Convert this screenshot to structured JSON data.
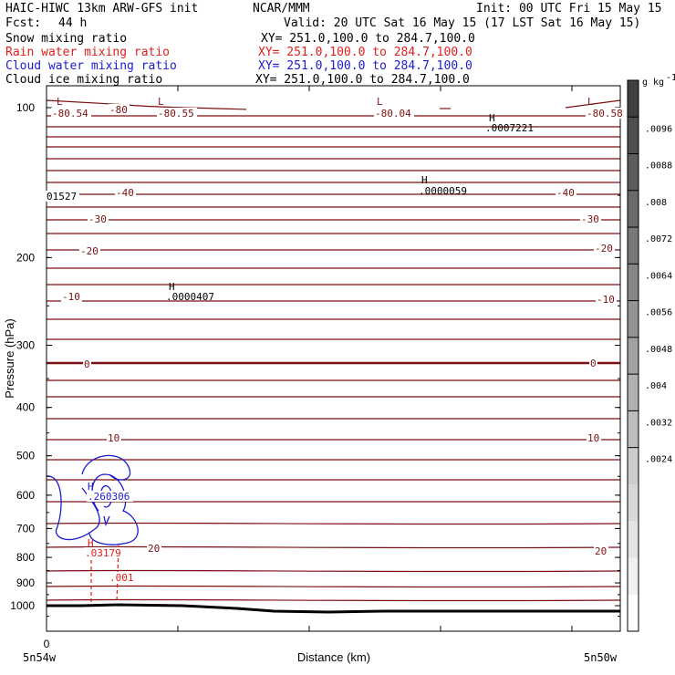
{
  "header": {
    "model": "HAIC-HIWC 13km ARW-GFS init",
    "org": "NCAR/MMM",
    "init": "Init: 00 UTC Fri 15 May 15",
    "fcst_label": "Fcst:",
    "fcst_value": "44 h",
    "valid": "Valid: 20 UTC Sat 16 May 15 (17 LST Sat 16 May 15)",
    "fields": [
      {
        "name": "Snow mixing ratio",
        "xy": "XY= 251.0,100.0 to 284.7,100.0",
        "color": "#000000"
      },
      {
        "name": "Rain water mixing ratio",
        "xy": "XY= 251.0,100.0 to 284.7,100.0",
        "color": "#e0201c"
      },
      {
        "name": "Cloud water mixing ratio",
        "xy": "XY= 251.0,100.0 to 284.7,100.0",
        "color": "#1c1ccc"
      },
      {
        "name": "Cloud ice mixing ratio",
        "xy": "XY= 251.0,100.0 to 284.7,100.0",
        "color": "#000000"
      }
    ]
  },
  "chart_data": {
    "type": "cross-section contour",
    "ylabel": "Pressure (hPa)",
    "xlabel": "Distance (km)",
    "y_ticks": [
      100,
      200,
      300,
      400,
      500,
      600,
      700,
      800,
      900,
      1000
    ],
    "ylim": [
      1050,
      55
    ],
    "y_scale": "log-pressure",
    "x_tick_start_label": "0",
    "x_endpoints": [
      "5n54w",
      "5n50w"
    ],
    "colorbar": {
      "unit": "g kg",
      "unit_exp": "-1",
      "tick_labels": [
        ".0096",
        ".0088",
        ".008",
        ".0072",
        ".0064",
        ".0056",
        ".0048",
        ".004",
        ".0032",
        ".0024"
      ],
      "colors": [
        "#404040",
        "#4e4e4e",
        "#5c5c5c",
        "#6a6a6a",
        "#787878",
        "#868686",
        "#949494",
        "#a2a2a2",
        "#b0b0b0",
        "#bebebe",
        "#cccccc",
        "#d8d8d8",
        "#e4e4e4",
        "#f0f0f0",
        "#ffffff"
      ]
    },
    "temperature_isotherms_C": [
      -80,
      -40,
      -30,
      -20,
      -10,
      0,
      10,
      20
    ],
    "temperature_labels": [
      {
        "text": "-80.54"
      },
      {
        "text": "-80"
      },
      {
        "text": "-80.55"
      },
      {
        "text": "-80.04"
      },
      {
        "text": "-80.58"
      },
      {
        "text": "-40"
      },
      {
        "text": "-40"
      },
      {
        "text": "-30"
      },
      {
        "text": "-30"
      },
      {
        "text": "-20"
      },
      {
        "text": "-20"
      },
      {
        "text": "-10"
      },
      {
        "text": "-10"
      },
      {
        "text": "0"
      },
      {
        "text": "0"
      },
      {
        "text": "10"
      },
      {
        "text": "10"
      },
      {
        "text": "20"
      },
      {
        "text": "20"
      }
    ],
    "extrema": [
      {
        "type": "L"
      },
      {
        "type": "L"
      },
      {
        "type": "L"
      },
      {
        "type": "L"
      },
      {
        "type": "H",
        "value": ".0007221"
      },
      {
        "type": "H",
        "value": ".0000059"
      },
      {
        "type": "H",
        "value": ".0000407"
      },
      {
        "type": "H",
        "value": ".260306"
      },
      {
        "type": "H",
        "value": ".03179"
      }
    ],
    "edge_values": [
      "01527",
      ".001"
    ],
    "colors": {
      "temperature": "#7a1010",
      "cloud_water": "#1c1ccc",
      "rain": "#e0201c",
      "terrain": "#000000"
    }
  }
}
